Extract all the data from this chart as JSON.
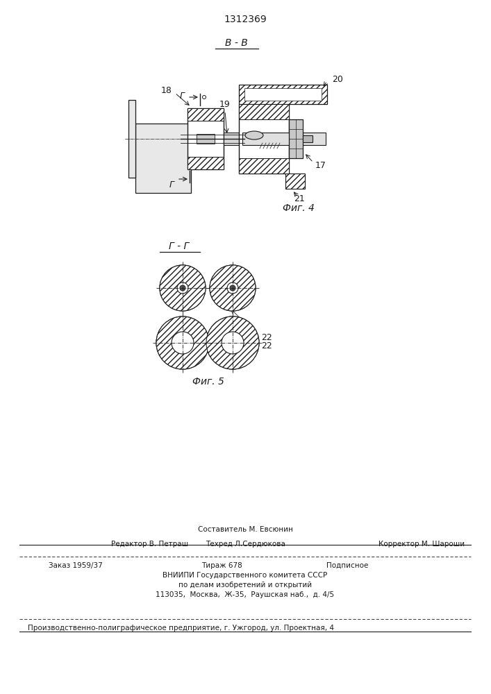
{
  "title": "1312369",
  "fig4_label": "В - В",
  "fig4_caption": "Фиг. 4",
  "fig5_label": "Г - Г",
  "fig5_caption": "Фиг. 5",
  "label_18": "18",
  "label_19": "19",
  "label_20": "20",
  "label_17": "17",
  "label_21": "21",
  "label_22a": "22",
  "label_22b": "22",
  "label_g_top": "Г",
  "label_g_bottom": "Г",
  "bg_color": "#ffffff",
  "line_color": "#1a1a1a",
  "text_color": "#1a1a1a",
  "footer_line1": "Составитель М. Евсюнин",
  "footer_line2_left": "Редактор В. Петраш",
  "footer_line2_mid": "Техред Л.Сердюкова",
  "footer_line2_right": "Корректор М. Шароши",
  "footer_line3a": "Заказ 1959/37",
  "footer_line3b": "Тираж 678",
  "footer_line3c": "Подписное",
  "footer_line4": "ВНИИПИ Государственного комитета СССР",
  "footer_line5": "по делам изобретений и открытий",
  "footer_line6": "113035,  Москва,  Ж-35,  Раушская наб.,  д. 4/5",
  "footer_line7": "Производственно-полиграфическое предприятие, г. Ужгород, ул. Проектная, 4"
}
